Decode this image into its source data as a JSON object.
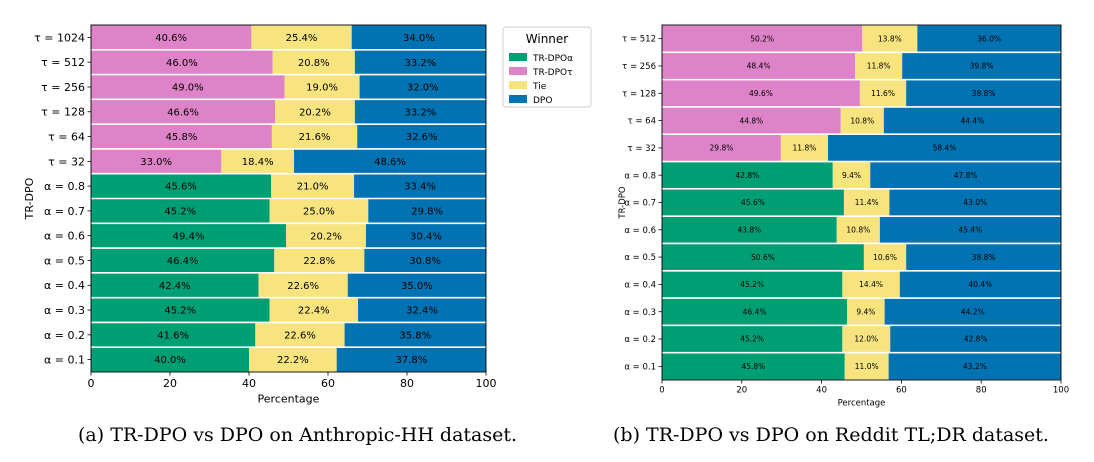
{
  "captions": {
    "a": "(a) TR-DPO vs DPO on Anthropic-HH dataset.",
    "b": "(b) TR-DPO vs DPO on Reddit TL;DR dataset."
  },
  "legend": {
    "title": "Winner",
    "entries": [
      {
        "label": "TR-DPOα",
        "color": "#009e73"
      },
      {
        "label": "TR-DPOτ",
        "color": "#de83c8"
      },
      {
        "label": "Tie",
        "color": "#f8e47e"
      },
      {
        "label": "DPO",
        "color": "#0173b2"
      }
    ]
  },
  "chart_data": [
    {
      "type": "bar",
      "orientation": "horizontal",
      "stacked": true,
      "xlabel": "Percentage",
      "ylabel": "TR-DPO",
      "xlim": [
        0,
        100
      ],
      "xticks": [
        "0",
        "20",
        "40",
        "60",
        "80",
        "100"
      ],
      "legend": "top-right outside",
      "categories": [
        "τ = 1024",
        "τ = 512",
        "τ = 256",
        "τ = 128",
        "τ = 64",
        "τ = 32",
        "α = 0.8",
        "α = 0.7",
        "α = 0.6",
        "α = 0.5",
        "α = 0.4",
        "α = 0.3",
        "α = 0.2",
        "α = 0.1"
      ],
      "series": [
        {
          "name": "TR-DPO",
          "values": [
            40.6,
            46.0,
            49.0,
            46.6,
            45.8,
            33.0,
            45.6,
            45.2,
            49.4,
            46.4,
            42.4,
            45.2,
            41.6,
            40.0
          ],
          "labels": [
            "40.6%",
            "46.0%",
            "49.0%",
            "46.6%",
            "45.8%",
            "33.0%",
            "45.6%",
            "45.2%",
            "49.4%",
            "46.4%",
            "42.4%",
            "45.2%",
            "41.6%",
            "40.0%"
          ]
        },
        {
          "name": "Tie",
          "values": [
            25.4,
            20.8,
            19.0,
            20.2,
            21.6,
            18.4,
            21.0,
            25.0,
            20.2,
            22.8,
            22.6,
            22.4,
            22.6,
            22.2
          ],
          "labels": [
            "25.4%",
            "20.8%",
            "19.0%",
            "20.2%",
            "21.6%",
            "18.4%",
            "21.0%",
            "25.0%",
            "20.2%",
            "22.8%",
            "22.6%",
            "22.4%",
            "22.6%",
            "22.2%"
          ]
        },
        {
          "name": "DPO",
          "values": [
            34.0,
            33.2,
            32.0,
            33.2,
            32.6,
            48.6,
            33.4,
            29.8,
            30.4,
            30.8,
            35.0,
            32.4,
            35.8,
            37.8
          ],
          "labels": [
            "34.0%",
            "33.2%",
            "32.0%",
            "33.2%",
            "32.6%",
            "48.6%",
            "33.4%",
            "29.8%",
            "30.4%",
            "30.8%",
            "35.0%",
            "32.4%",
            "35.8%",
            "37.8%"
          ]
        }
      ]
    },
    {
      "type": "bar",
      "orientation": "horizontal",
      "stacked": true,
      "xlabel": "Percentage",
      "ylabel": "TR-DPO",
      "xlim": [
        0,
        100
      ],
      "xticks": [
        "0",
        "20",
        "40",
        "60",
        "80",
        "100"
      ],
      "categories": [
        "τ = 512",
        "τ = 256",
        "τ = 128",
        "τ = 64",
        "τ = 32",
        "α = 0.8",
        "α = 0.7",
        "α = 0.6",
        "α = 0.5",
        "α = 0.4",
        "α = 0.3",
        "α = 0.2",
        "α = 0.1"
      ],
      "series": [
        {
          "name": "TR-DPO",
          "values": [
            50.2,
            48.4,
            49.6,
            44.8,
            29.8,
            42.8,
            45.6,
            43.8,
            50.6,
            45.2,
            46.4,
            45.2,
            45.8
          ],
          "labels": [
            "50.2%",
            "48.4%",
            "49.6%",
            "44.8%",
            "29.8%",
            "42.8%",
            "45.6%",
            "43.8%",
            "50.6%",
            "45.2%",
            "46.4%",
            "45.2%",
            "45.8%"
          ]
        },
        {
          "name": "Tie",
          "values": [
            13.8,
            11.8,
            11.6,
            10.8,
            11.8,
            9.4,
            11.4,
            10.8,
            10.6,
            14.4,
            9.4,
            12.0,
            11.0
          ],
          "labels": [
            "13.8%",
            "11.8%",
            "11.6%",
            "10.8%",
            "11.8%",
            "9.4%",
            "11.4%",
            "10.8%",
            "10.6%",
            "14.4%",
            "9.4%",
            "12.0%",
            "11.0%"
          ]
        },
        {
          "name": "DPO",
          "values": [
            36.0,
            39.8,
            38.8,
            44.4,
            58.4,
            47.8,
            43.0,
            45.4,
            38.8,
            40.4,
            44.2,
            42.8,
            43.2
          ],
          "labels": [
            "36.0%",
            "39.8%",
            "38.8%",
            "44.4%",
            "58.4%",
            "47.8%",
            "43.0%",
            "45.4%",
            "38.8%",
            "40.4%",
            "44.2%",
            "42.8%",
            "43.2%"
          ]
        }
      ]
    }
  ]
}
